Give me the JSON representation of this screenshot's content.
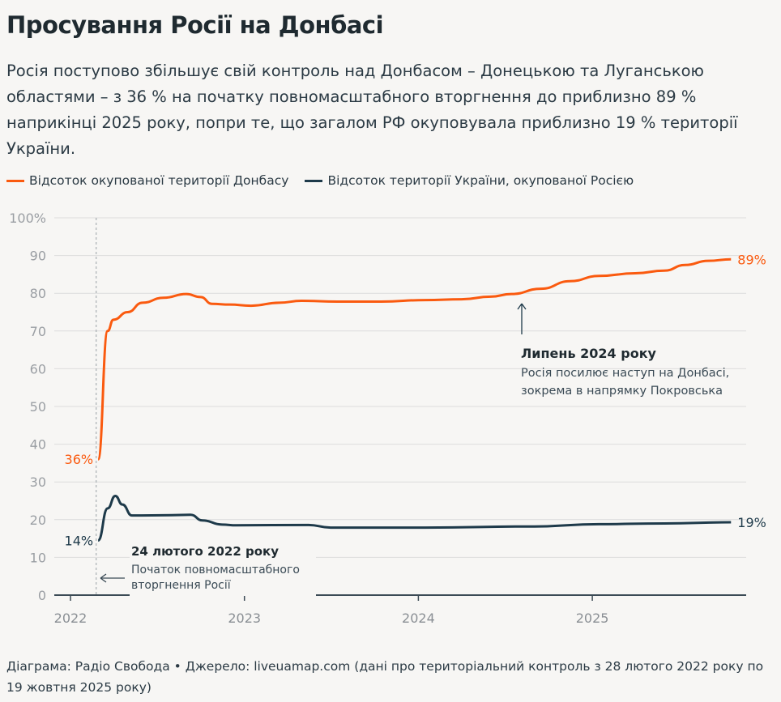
{
  "title": "Просування Росії на Донбасі",
  "subtitle": "Росія поступово збільшує свій контроль над Донбасом – Донецькою та Луганською областями – з 36 % на початку повномасштабного вторгнення до приблизно 89 % наприкінці 2025 року, попри те, що загалом РФ окуповувала приблизно 19 % території України.",
  "footer": "Діаграма: Радіо Свобода • Джерело: liveuamap.com (дані про територіальний контроль з 28 лютого 2022 року по 19 жовтня 2025 року)",
  "colors": {
    "donbas": "#fa5a0f",
    "ukraine": "#1e3a4a",
    "grid": "#dcdcdc",
    "axis_text": "#9a9ea3",
    "background": "#f7f6f4"
  },
  "chart_data": {
    "type": "line",
    "xlabel": "",
    "ylabel": "",
    "ylim": [
      0,
      100
    ],
    "xlim": [
      "2021-11-15",
      "2025-11-10"
    ],
    "y_ticks": [
      "0",
      "10",
      "20",
      "30",
      "40",
      "50",
      "60",
      "70",
      "80",
      "90",
      "100%"
    ],
    "x_ticks": [
      "2022",
      "2023",
      "2024",
      "2025"
    ],
    "grid": true,
    "legend": "top",
    "series": [
      {
        "name": "Відсоток окупованої території Донбасу",
        "color": "#fa5a0f",
        "start_label": "36%",
        "end_label": "89%",
        "points": [
          [
            "2022-02-28",
            36
          ],
          [
            "2022-03-20",
            70
          ],
          [
            "2022-04-01",
            73
          ],
          [
            "2022-05-01",
            75
          ],
          [
            "2022-06-01",
            77.5
          ],
          [
            "2022-07-15",
            78.8
          ],
          [
            "2022-09-01",
            79.8
          ],
          [
            "2022-10-01",
            79
          ],
          [
            "2022-10-25",
            77.2
          ],
          [
            "2022-12-01",
            77
          ],
          [
            "2023-01-15",
            76.7
          ],
          [
            "2023-03-15",
            77.5
          ],
          [
            "2023-05-01",
            78
          ],
          [
            "2023-07-15",
            77.8
          ],
          [
            "2023-10-15",
            77.8
          ],
          [
            "2024-01-15",
            78.2
          ],
          [
            "2024-04-01",
            78.4
          ],
          [
            "2024-06-01",
            79.1
          ],
          [
            "2024-07-15",
            79.8
          ],
          [
            "2024-09-15",
            81.2
          ],
          [
            "2024-11-15",
            83.2
          ],
          [
            "2025-01-15",
            84.6
          ],
          [
            "2025-04-01",
            85.3
          ],
          [
            "2025-06-01",
            86
          ],
          [
            "2025-07-15",
            87.5
          ],
          [
            "2025-09-01",
            88.6
          ],
          [
            "2025-10-19",
            89
          ]
        ]
      },
      {
        "name": "Відсоток території України, окупованої Росією",
        "color": "#1e3a4a",
        "start_label": "14%",
        "end_label": "19%",
        "points": [
          [
            "2022-02-28",
            14.5
          ],
          [
            "2022-03-20",
            23
          ],
          [
            "2022-04-05",
            26.3
          ],
          [
            "2022-04-20",
            24
          ],
          [
            "2022-05-10",
            21.1
          ],
          [
            "2022-08-01",
            21.2
          ],
          [
            "2022-09-10",
            21.3
          ],
          [
            "2022-10-05",
            19.8
          ],
          [
            "2022-11-15",
            18.7
          ],
          [
            "2022-12-15",
            18.5
          ],
          [
            "2023-05-15",
            18.6
          ],
          [
            "2023-07-01",
            17.9
          ],
          [
            "2024-01-15",
            17.9
          ],
          [
            "2024-09-01",
            18.2
          ],
          [
            "2025-01-15",
            18.8
          ],
          [
            "2025-06-01",
            19
          ],
          [
            "2025-10-19",
            19.3
          ]
        ]
      }
    ],
    "annotations": [
      {
        "date": "2022-02-24",
        "title": "24 лютого 2022 року",
        "text_lines": [
          "Початок повномасштабного",
          "вторгнення Росії"
        ]
      },
      {
        "date": "2024-07-15",
        "title": "Липень 2024 року",
        "text_lines": [
          "Росія посилює наступ на Донбасі,",
          "зокрема в напрямку Покровська"
        ]
      }
    ]
  }
}
